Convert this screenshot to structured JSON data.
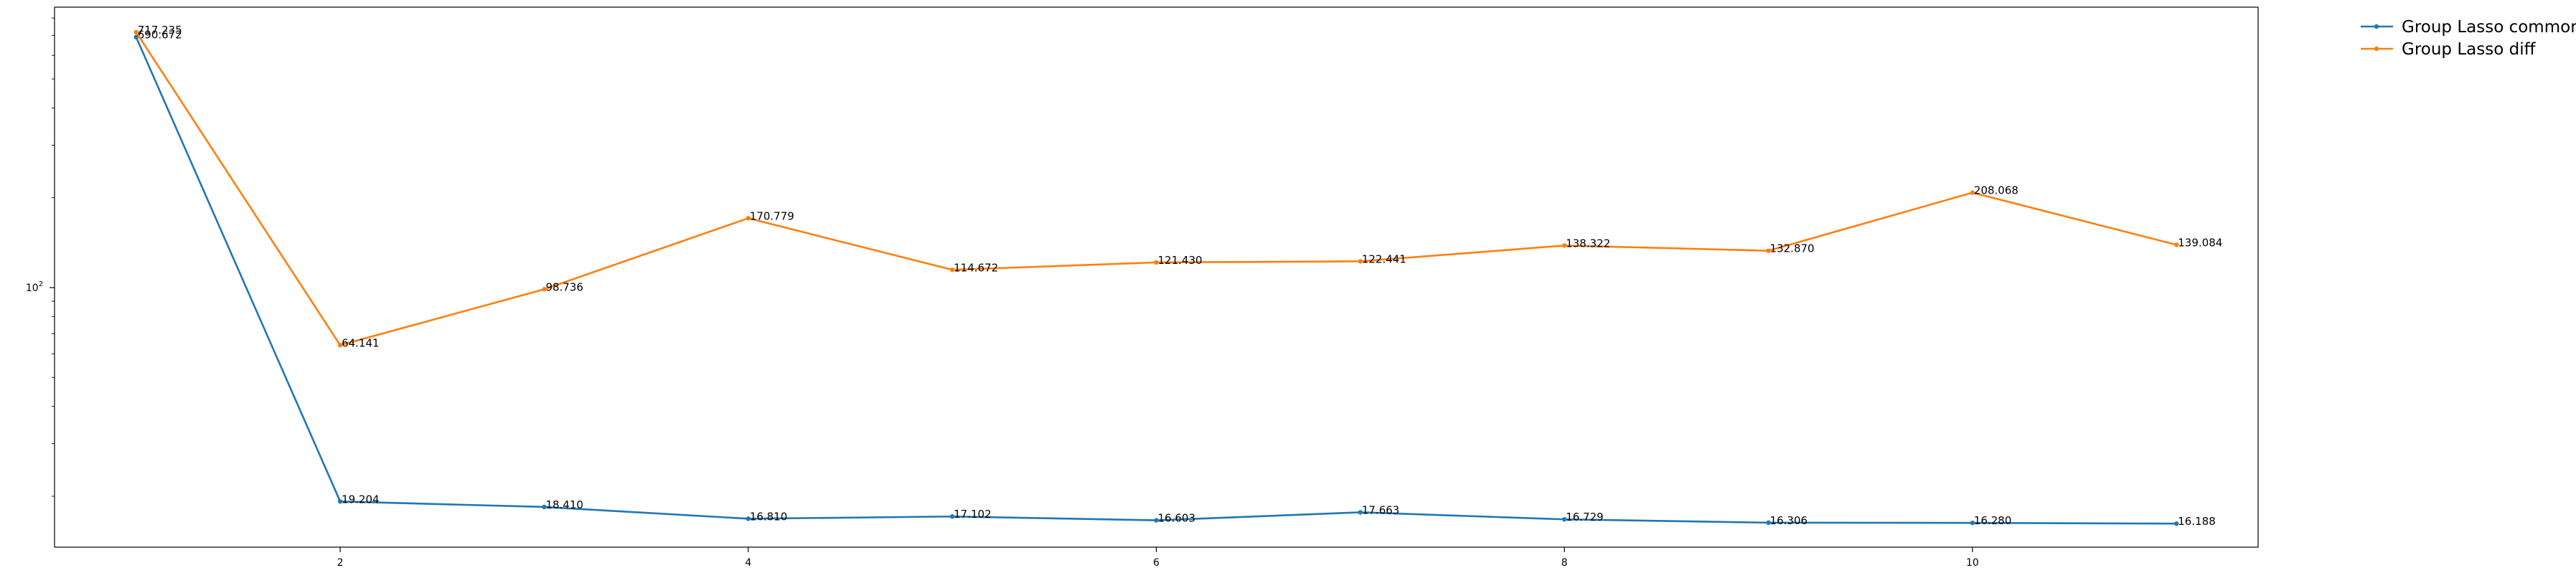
{
  "chart_data": {
    "type": "line",
    "title": "",
    "xlabel": "",
    "ylabel": "",
    "x": [
      1,
      2,
      3,
      4,
      5,
      6,
      7,
      8,
      9,
      10,
      11
    ],
    "xticks": [
      2,
      4,
      6,
      8,
      10
    ],
    "xlim": [
      0.6,
      11.4
    ],
    "yscale": "log",
    "ylim": [
      13.5,
      870
    ],
    "yticks": [
      {
        "value": 100,
        "base": "10",
        "exp": "2"
      }
    ],
    "grid": false,
    "legend_position": "outside-top-right",
    "series": [
      {
        "name": "Group Lasso common",
        "color": "#1f77b4",
        "values": [
          690.672,
          19.204,
          18.41,
          16.81,
          17.102,
          16.603,
          17.663,
          16.729,
          16.306,
          16.28,
          16.188
        ],
        "labels": [
          "690.672",
          "19.204",
          "18.410",
          "16.810",
          "17.102",
          "16.603",
          "17.663",
          "16.729",
          "16.306",
          "16.280",
          "16.188"
        ]
      },
      {
        "name": "Group Lasso diff",
        "color": "#ff7f0e",
        "values": [
          717.235,
          64.141,
          98.736,
          170.779,
          114.672,
          121.43,
          122.441,
          138.322,
          132.87,
          208.068,
          139.084
        ],
        "labels": [
          "717.235",
          "64.141",
          "98.736",
          "170.779",
          "114.672",
          "121.430",
          "122.441",
          "138.322",
          "132.870",
          "208.068",
          "139.084"
        ]
      }
    ]
  }
}
